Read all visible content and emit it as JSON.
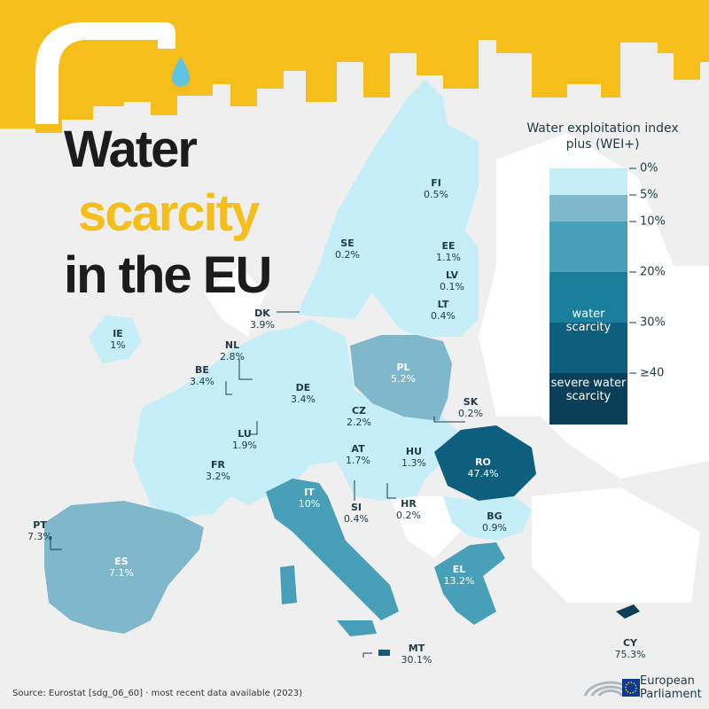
{
  "title": {
    "line1": "Water",
    "line2": "scarcity",
    "line3": "in the EU"
  },
  "legend": {
    "title": "Water exploitation index plus (WEI+)",
    "ticks": [
      "0%",
      "5%",
      "10%",
      "20%",
      "30%",
      "≥40"
    ],
    "band_water_scarcity": "water scarcity",
    "band_severe": "severe water scarcity",
    "colors": [
      "#c5eef9",
      "#7eb8ca",
      "#489fb8",
      "#1a7f9d",
      "#0e5e7e",
      "#0a3f57"
    ]
  },
  "countries": [
    {
      "code": "FI",
      "value": "0.5%"
    },
    {
      "code": "SE",
      "value": "0.2%"
    },
    {
      "code": "EE",
      "value": "1.1%"
    },
    {
      "code": "LV",
      "value": "0.1%"
    },
    {
      "code": "LT",
      "value": "0.4%"
    },
    {
      "code": "DK",
      "value": "3.9%"
    },
    {
      "code": "IE",
      "value": "1%"
    },
    {
      "code": "NL",
      "value": "2.8%"
    },
    {
      "code": "BE",
      "value": "3.4%"
    },
    {
      "code": "DE",
      "value": "3.4%"
    },
    {
      "code": "PL",
      "value": "5.2%"
    },
    {
      "code": "LU",
      "value": "1.9%"
    },
    {
      "code": "CZ",
      "value": "2.2%"
    },
    {
      "code": "SK",
      "value": "0.2%"
    },
    {
      "code": "AT",
      "value": "1.7%"
    },
    {
      "code": "HU",
      "value": "1.3%"
    },
    {
      "code": "FR",
      "value": "3.2%"
    },
    {
      "code": "RO",
      "value": "47.4%"
    },
    {
      "code": "IT",
      "value": "10%"
    },
    {
      "code": "SI",
      "value": "0.4%"
    },
    {
      "code": "HR",
      "value": "0.2%"
    },
    {
      "code": "BG",
      "value": "0.9%"
    },
    {
      "code": "PT",
      "value": "7.3%"
    },
    {
      "code": "ES",
      "value": "7.1%"
    },
    {
      "code": "EL",
      "value": "13.2%"
    },
    {
      "code": "MT",
      "value": "30.1%"
    },
    {
      "code": "CY",
      "value": "75.3%"
    }
  ],
  "source": "Source: Eurostat [sdg_06_60] · most recent data available (2023)",
  "brand": {
    "line1": "European",
    "line2": "Parliament"
  }
}
